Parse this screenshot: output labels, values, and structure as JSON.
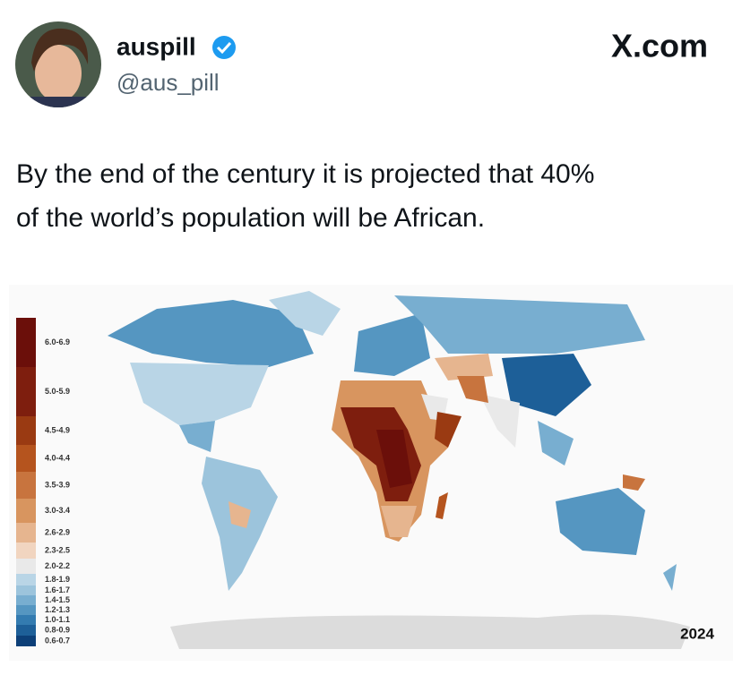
{
  "header": {
    "name": "auspill",
    "handle": "@aus_pill",
    "site": "X.com"
  },
  "tweet": {
    "lines": [
      "By the end of the century it is projected that 40%",
      "of the world’s population will be African."
    ]
  },
  "map": {
    "year": "2024",
    "legend": [
      {
        "label": "6.0-6.9",
        "color": "#6b0f0a"
      },
      {
        "label": "5.0-5.9",
        "color": "#7e1e0e"
      },
      {
        "label": "4.5-4.9",
        "color": "#9a3a12"
      },
      {
        "label": "4.0-4.4",
        "color": "#b5541e"
      },
      {
        "label": "3.5-3.9",
        "color": "#c8743e"
      },
      {
        "label": "3.0-3.4",
        "color": "#d8955f"
      },
      {
        "label": "2.6-2.9",
        "color": "#e6b58f"
      },
      {
        "label": "2.3-2.5",
        "color": "#f1d5c0"
      },
      {
        "label": "2.0-2.2",
        "color": "#e9e9e9"
      },
      {
        "label": "1.8-1.9",
        "color": "#b9d5e6"
      },
      {
        "label": "1.6-1.7",
        "color": "#9cc4dc"
      },
      {
        "label": "1.4-1.5",
        "color": "#78aed0"
      },
      {
        "label": "1.2-1.3",
        "color": "#5596c1"
      },
      {
        "label": "1.0-1.1",
        "color": "#337bb0"
      },
      {
        "label": "0.8-0.9",
        "color": "#1d5f98"
      },
      {
        "label": "0.6-0.7",
        "color": "#0c3f78"
      }
    ]
  }
}
